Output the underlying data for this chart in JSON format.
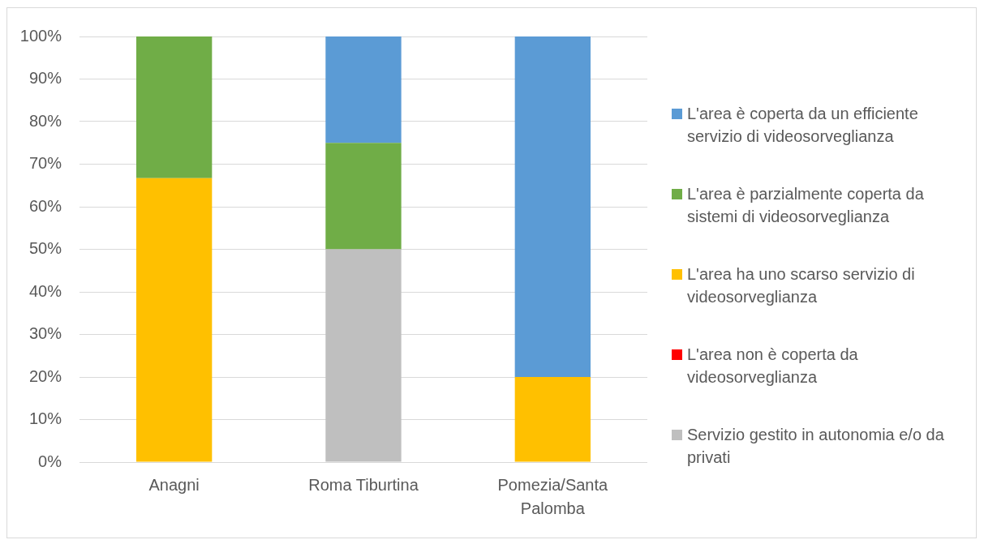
{
  "chart_data": {
    "type": "bar",
    "categories": [
      "Anagni",
      "Roma Tiburtina",
      "Pomezia/Santa Palomba"
    ],
    "series": [
      {
        "name": "Servizio gestito in autonomia e/o da privati",
        "color": "#bfbfbf",
        "values": [
          0,
          50,
          0
        ]
      },
      {
        "name": "L'area non è coperta da videosorveglianza",
        "color": "#ff0000",
        "values": [
          0,
          0,
          0
        ]
      },
      {
        "name": "L'area ha uno scarso servizio di videosorveglianza",
        "color": "#ffc000",
        "values": [
          66.7,
          0,
          20
        ]
      },
      {
        "name": "L'area è parzialmente coperta da sistemi di videosorveglianza",
        "color": "#70ad47",
        "values": [
          33.3,
          25,
          0
        ]
      },
      {
        "name": "L'area è coperta da un efficiente servizio di videosorveglianza",
        "color": "#5b9bd5",
        "values": [
          0,
          25,
          80
        ]
      }
    ],
    "stacked": true,
    "ylim": [
      0,
      100
    ],
    "yticks": [
      {
        "value": 0,
        "label": "0%"
      },
      {
        "value": 10,
        "label": "10%"
      },
      {
        "value": 20,
        "label": "20%"
      },
      {
        "value": 30,
        "label": "30%"
      },
      {
        "value": 40,
        "label": "40%"
      },
      {
        "value": 50,
        "label": "50%"
      },
      {
        "value": 60,
        "label": "60%"
      },
      {
        "value": 70,
        "label": "70%"
      },
      {
        "value": 80,
        "label": "80%"
      },
      {
        "value": 90,
        "label": "90%"
      },
      {
        "value": 100,
        "label": "100%"
      }
    ],
    "grid": "y",
    "legend": "right"
  }
}
